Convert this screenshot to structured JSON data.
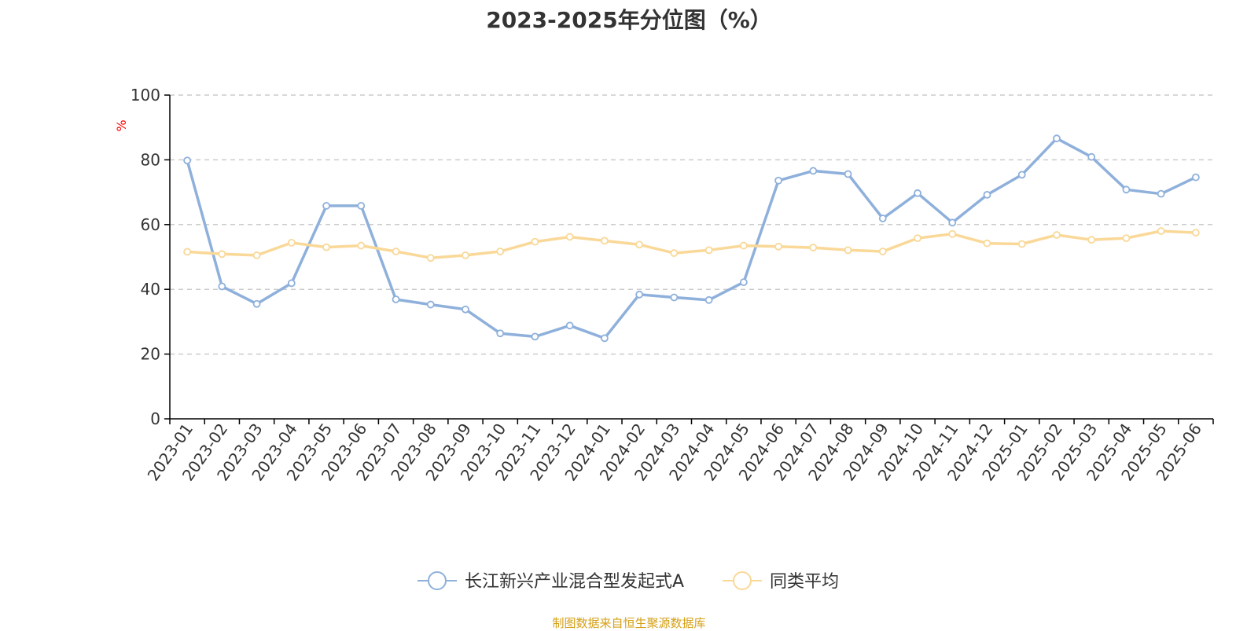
{
  "chart_data": {
    "type": "line",
    "title": "2023-2025年分位图（%）",
    "ylabel": "%",
    "ylim": [
      0,
      100
    ],
    "yticks": [
      0,
      20,
      40,
      60,
      80,
      100
    ],
    "grid": true,
    "legend_position": "bottom-center",
    "categories": [
      "2023-01",
      "2023-02",
      "2023-03",
      "2023-04",
      "2023-05",
      "2023-06",
      "2023-07",
      "2023-08",
      "2023-09",
      "2023-10",
      "2023-11",
      "2023-12",
      "2024-01",
      "2024-02",
      "2024-03",
      "2024-04",
      "2024-05",
      "2024-06",
      "2024-07",
      "2024-08",
      "2024-09",
      "2024-10",
      "2024-11",
      "2024-12",
      "2025-01",
      "2025-02",
      "2025-03",
      "2025-04",
      "2025-05",
      "2025-06"
    ],
    "series": [
      {
        "name": "长江新兴产业混合型发起式A",
        "color": "#8eb0db",
        "values": [
          79.8,
          40.9,
          35.5,
          41.9,
          65.8,
          65.8,
          36.9,
          35.3,
          33.8,
          26.4,
          25.4,
          28.8,
          24.9,
          38.4,
          37.5,
          36.7,
          42.2,
          73.6,
          76.6,
          75.6,
          61.9,
          69.7,
          60.6,
          69.2,
          75.4,
          86.6,
          80.9,
          70.8,
          69.5,
          74.6
        ]
      },
      {
        "name": "同类平均",
        "color": "#f9d898",
        "values": [
          51.6,
          50.9,
          50.5,
          54.4,
          53.0,
          53.5,
          51.7,
          49.7,
          50.5,
          51.7,
          54.7,
          56.2,
          55.0,
          53.8,
          51.2,
          52.1,
          53.5,
          53.2,
          52.9,
          52.1,
          51.7,
          55.8,
          57.1,
          54.2,
          54.0,
          56.8,
          55.3,
          55.8,
          58.0,
          57.5
        ]
      }
    ]
  },
  "source_text": "制图数据来自恒生聚源数据库",
  "colors": {
    "title": "#333333",
    "axis": "#000000",
    "grid": "#cccccc",
    "ylabel": "#ff0000",
    "source": "#d4a017"
  }
}
